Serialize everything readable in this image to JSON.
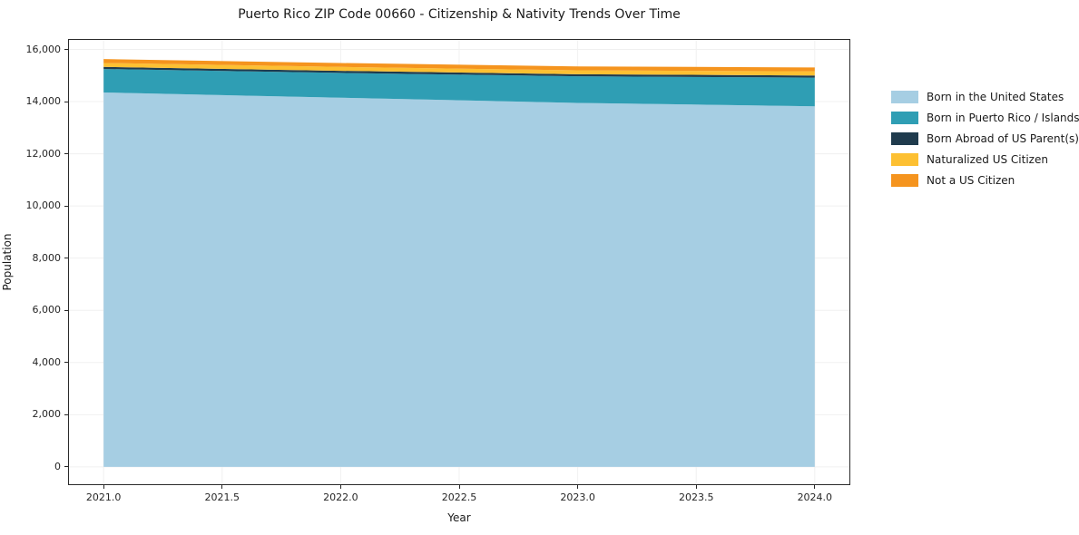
{
  "chart_data": {
    "type": "area",
    "stacked": true,
    "title": "Puerto Rico ZIP Code 00660 - Citizenship & Nativity Trends Over Time",
    "xlabel": "Year",
    "ylabel": "Population",
    "x": [
      2021,
      2022,
      2023,
      2024
    ],
    "series": [
      {
        "name": "Born in the United States",
        "color": "#a6cee3",
        "values": [
          14350,
          14150,
          13950,
          13820
        ]
      },
      {
        "name": "Born in Puerto Rico / Islands",
        "color": "#2f9eb4",
        "values": [
          900,
          950,
          1020,
          1100
        ]
      },
      {
        "name": "Born Abroad of US Parent(s)",
        "color": "#1f3b4d",
        "values": [
          80,
          80,
          80,
          80
        ]
      },
      {
        "name": "Naturalized US Citizen",
        "color": "#fdc032",
        "values": [
          150,
          150,
          150,
          160
        ]
      },
      {
        "name": "Not a US Citizen",
        "color": "#f5941e",
        "values": [
          150,
          150,
          150,
          150
        ]
      }
    ],
    "xticks": [
      2021.0,
      2021.5,
      2022.0,
      2022.5,
      2023.0,
      2023.5,
      2024.0
    ],
    "yticks": [
      0,
      2000,
      4000,
      6000,
      8000,
      10000,
      12000,
      14000,
      16000
    ],
    "xlim": [
      2020.85,
      2024.15
    ],
    "ylim": [
      -700,
      16400
    ],
    "legend_position": "right-outside",
    "grid": true,
    "grid_color": "#f0f0f0",
    "spine_color": "#2b2b2b",
    "background_color": "#ffffff"
  }
}
